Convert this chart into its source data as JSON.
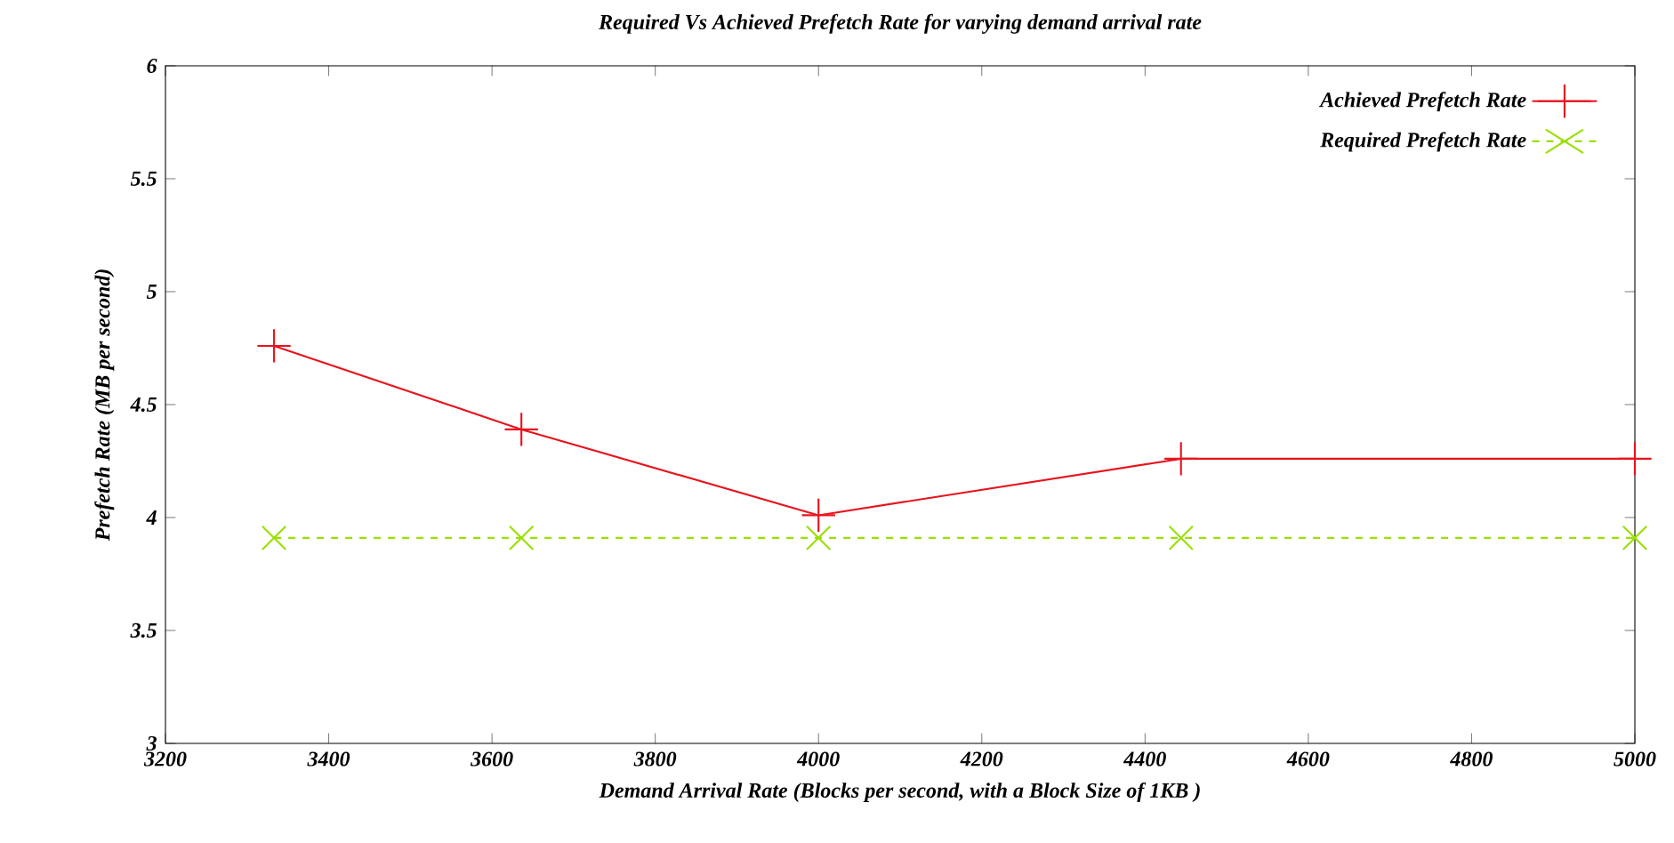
{
  "chart_data": {
    "type": "line",
    "title": "Required Vs Achieved Prefetch Rate for varying demand arrival rate",
    "xlabel": "Demand Arrival Rate (Blocks per second, with a Block Size of 1KB )",
    "ylabel": "Prefetch Rate (MB per second)",
    "x": [
      3333,
      3636,
      4000,
      4444,
      5000
    ],
    "series": [
      {
        "name": "Achieved Prefetch Rate",
        "color": "#e8141c",
        "values": [
          4.76,
          4.39,
          4.01,
          4.26,
          4.26
        ],
        "marker": "cross",
        "line_style": "solid"
      },
      {
        "name": "Required Prefetch Rate",
        "color": "#99e000",
        "values": [
          3.91,
          3.91,
          3.91,
          3.91,
          3.91
        ],
        "marker": "x",
        "line_style": "dashed"
      }
    ],
    "xlim": [
      3200,
      5000
    ],
    "ylim": [
      3,
      6
    ],
    "xticks": [
      3200,
      3400,
      3600,
      3800,
      4000,
      4200,
      4400,
      4600,
      4800,
      5000
    ],
    "yticks": [
      3,
      3.5,
      4,
      4.5,
      5,
      5.5,
      6
    ],
    "grid": false,
    "legend": "top right"
  }
}
